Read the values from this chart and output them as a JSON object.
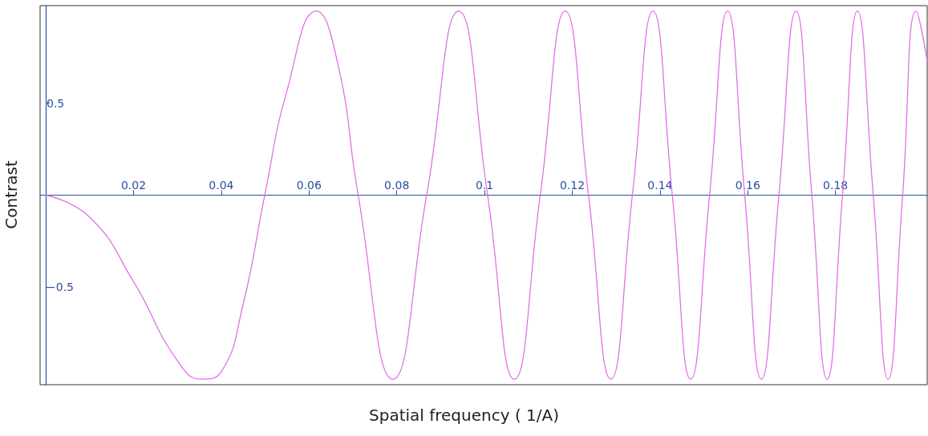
{
  "chart_data": {
    "type": "line",
    "xlabel": "Spatial frequency ( 1/A)",
    "ylabel": "Contrast",
    "xlim": [
      -0.0013,
      0.2009
    ],
    "ylim": [
      -1.03,
      1.03
    ],
    "xticks": [
      0.02,
      0.04,
      0.06,
      0.08,
      0.1,
      0.12,
      0.14,
      0.16,
      0.18
    ],
    "yticks": [
      {
        "value": -0.5,
        "label": "−0.5"
      },
      0.5
    ],
    "grid": false,
    "marker": "none",
    "line_style": "solid",
    "series": [
      {
        "color": "#e070e8",
        "x": [
          0,
          0.01,
          0.02,
          0.03,
          0.0356,
          0.04,
          0.045,
          0.0499,
          0.055,
          0.0617,
          0.0665,
          0.0712,
          0.0791,
          0.0868,
          0.0941,
          0.1007,
          0.1068,
          0.1127,
          0.1184,
          0.1237,
          0.1288,
          0.1337,
          0.1384,
          0.1428,
          0.147,
          0.1513,
          0.1554,
          0.1593,
          0.1631,
          0.1671,
          0.171,
          0.1746,
          0.1781,
          0.1816,
          0.185,
          0.1886,
          0.192,
          0.1953,
          0.1984,
          0.2009
        ],
        "values": [
          0,
          -0.12,
          -0.47,
          -0.9,
          -1,
          -0.96,
          -0.59,
          0,
          0.57,
          1,
          0.72,
          0,
          -1,
          0,
          1,
          0,
          -1,
          0,
          1,
          0,
          -1,
          0,
          1,
          0,
          -1,
          0,
          1,
          0,
          -1,
          0,
          1,
          0,
          -1,
          0,
          1,
          0,
          -1,
          0,
          1,
          0.73
        ]
      }
    ]
  }
}
